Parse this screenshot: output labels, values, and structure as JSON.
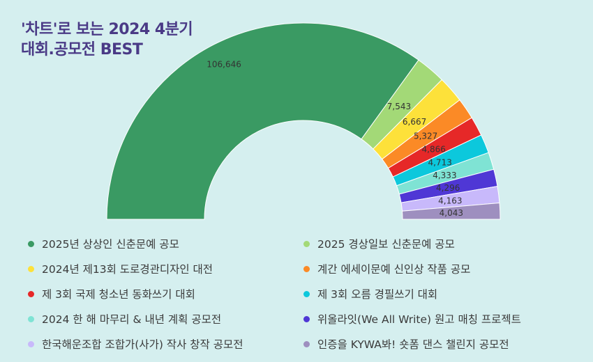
{
  "title_lines": [
    "'차트'로 보는 2024 4분기",
    "대회.공모전 BEST"
  ],
  "chart_data": {
    "type": "pie",
    "variant": "half-donut",
    "title": "'차트'로 보는 2024 4분기 대회.공모전 BEST",
    "legend_position": "bottom",
    "categories": [
      "2025년 상상인 신춘문예 공모",
      "2025 경상일보 신춘문예 공모",
      "2024년 제13회 도로경관디자인 대전",
      "계간 에세이문예 신인상 작품 공모",
      "제 3회 국제 청소년 동화쓰기 대회",
      "제 3회 오름 경필쓰기 대회",
      "2024 한 해 마무리 & 내년 계획 공모전",
      "위올라잇(We All Write) 원고 매칭 프로젝트",
      "한국해운조합 조합가(사가) 작사 창작 공모전",
      "인증을 KYWA봐! 숏폼 댄스 챌린지 공모전"
    ],
    "values": [
      106646,
      7543,
      6667,
      5327,
      4866,
      4713,
      4333,
      4296,
      4163,
      4043
    ],
    "labels": [
      "106,646",
      "7,543",
      "6,667",
      "5,327",
      "4,866",
      "4,713",
      "4,333",
      "4,296",
      "4,163",
      "4,043"
    ],
    "colors": [
      "#3a9a63",
      "#a3d977",
      "#fde13a",
      "#fb8a26",
      "#e62828",
      "#0cc8dc",
      "#7fe3d4",
      "#4f37d5",
      "#c8b9fb",
      "#9e8fbf"
    ]
  }
}
